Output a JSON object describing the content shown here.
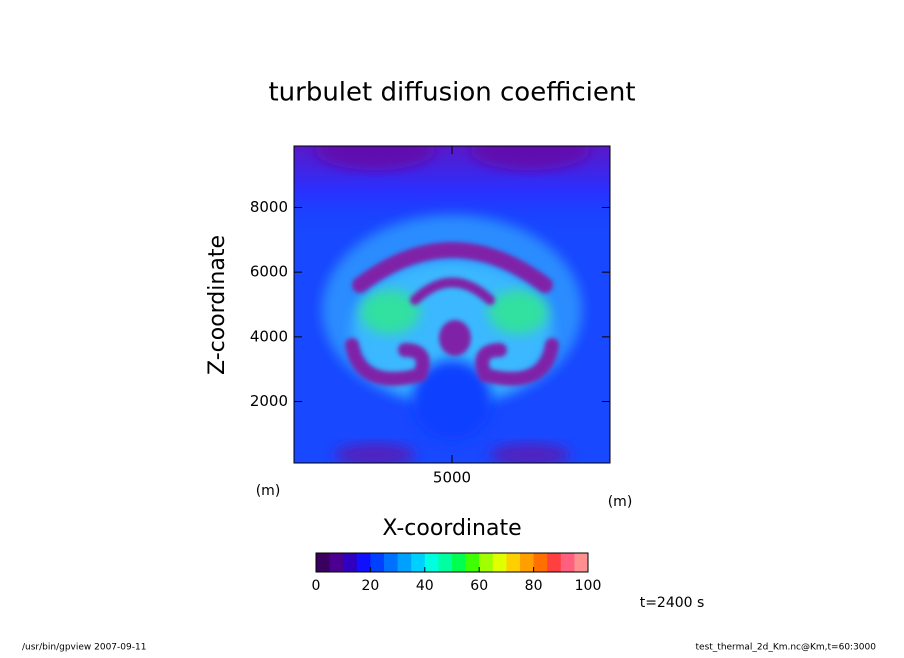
{
  "chart_data": {
    "type": "contour",
    "title": "turbulet diffusion coefficient",
    "xlabel": "X-coordinate",
    "ylabel": "Z-coordinate",
    "xunit": "(m)",
    "yunit": "(m)",
    "xlim": [
      100,
      9900
    ],
    "ylim": [
      100,
      9900
    ],
    "xticks": [
      5000
    ],
    "yticks": [
      2000,
      4000,
      6000,
      8000
    ],
    "colorbar": {
      "lim": [
        0,
        100
      ],
      "ticks": [
        0,
        20,
        40,
        60,
        80,
        100
      ],
      "colors": [
        "#3a0060",
        "#4a0090",
        "#3000c0",
        "#1010ff",
        "#0040ff",
        "#0070ff",
        "#00a0ff",
        "#00d0ff",
        "#00ffe0",
        "#00ffa0",
        "#00ff50",
        "#40ff00",
        "#a0ff00",
        "#e0ff00",
        "#ffd000",
        "#ffa000",
        "#ff7000",
        "#ff4040",
        "#ff6080",
        "#ff9090"
      ]
    },
    "annotation": "t=2400 s",
    "footer_left": "/usr/bin/gpview   2007-09-11",
    "footer_right": "test_thermal_2d_Km.nc@Km,t=60:3000"
  }
}
